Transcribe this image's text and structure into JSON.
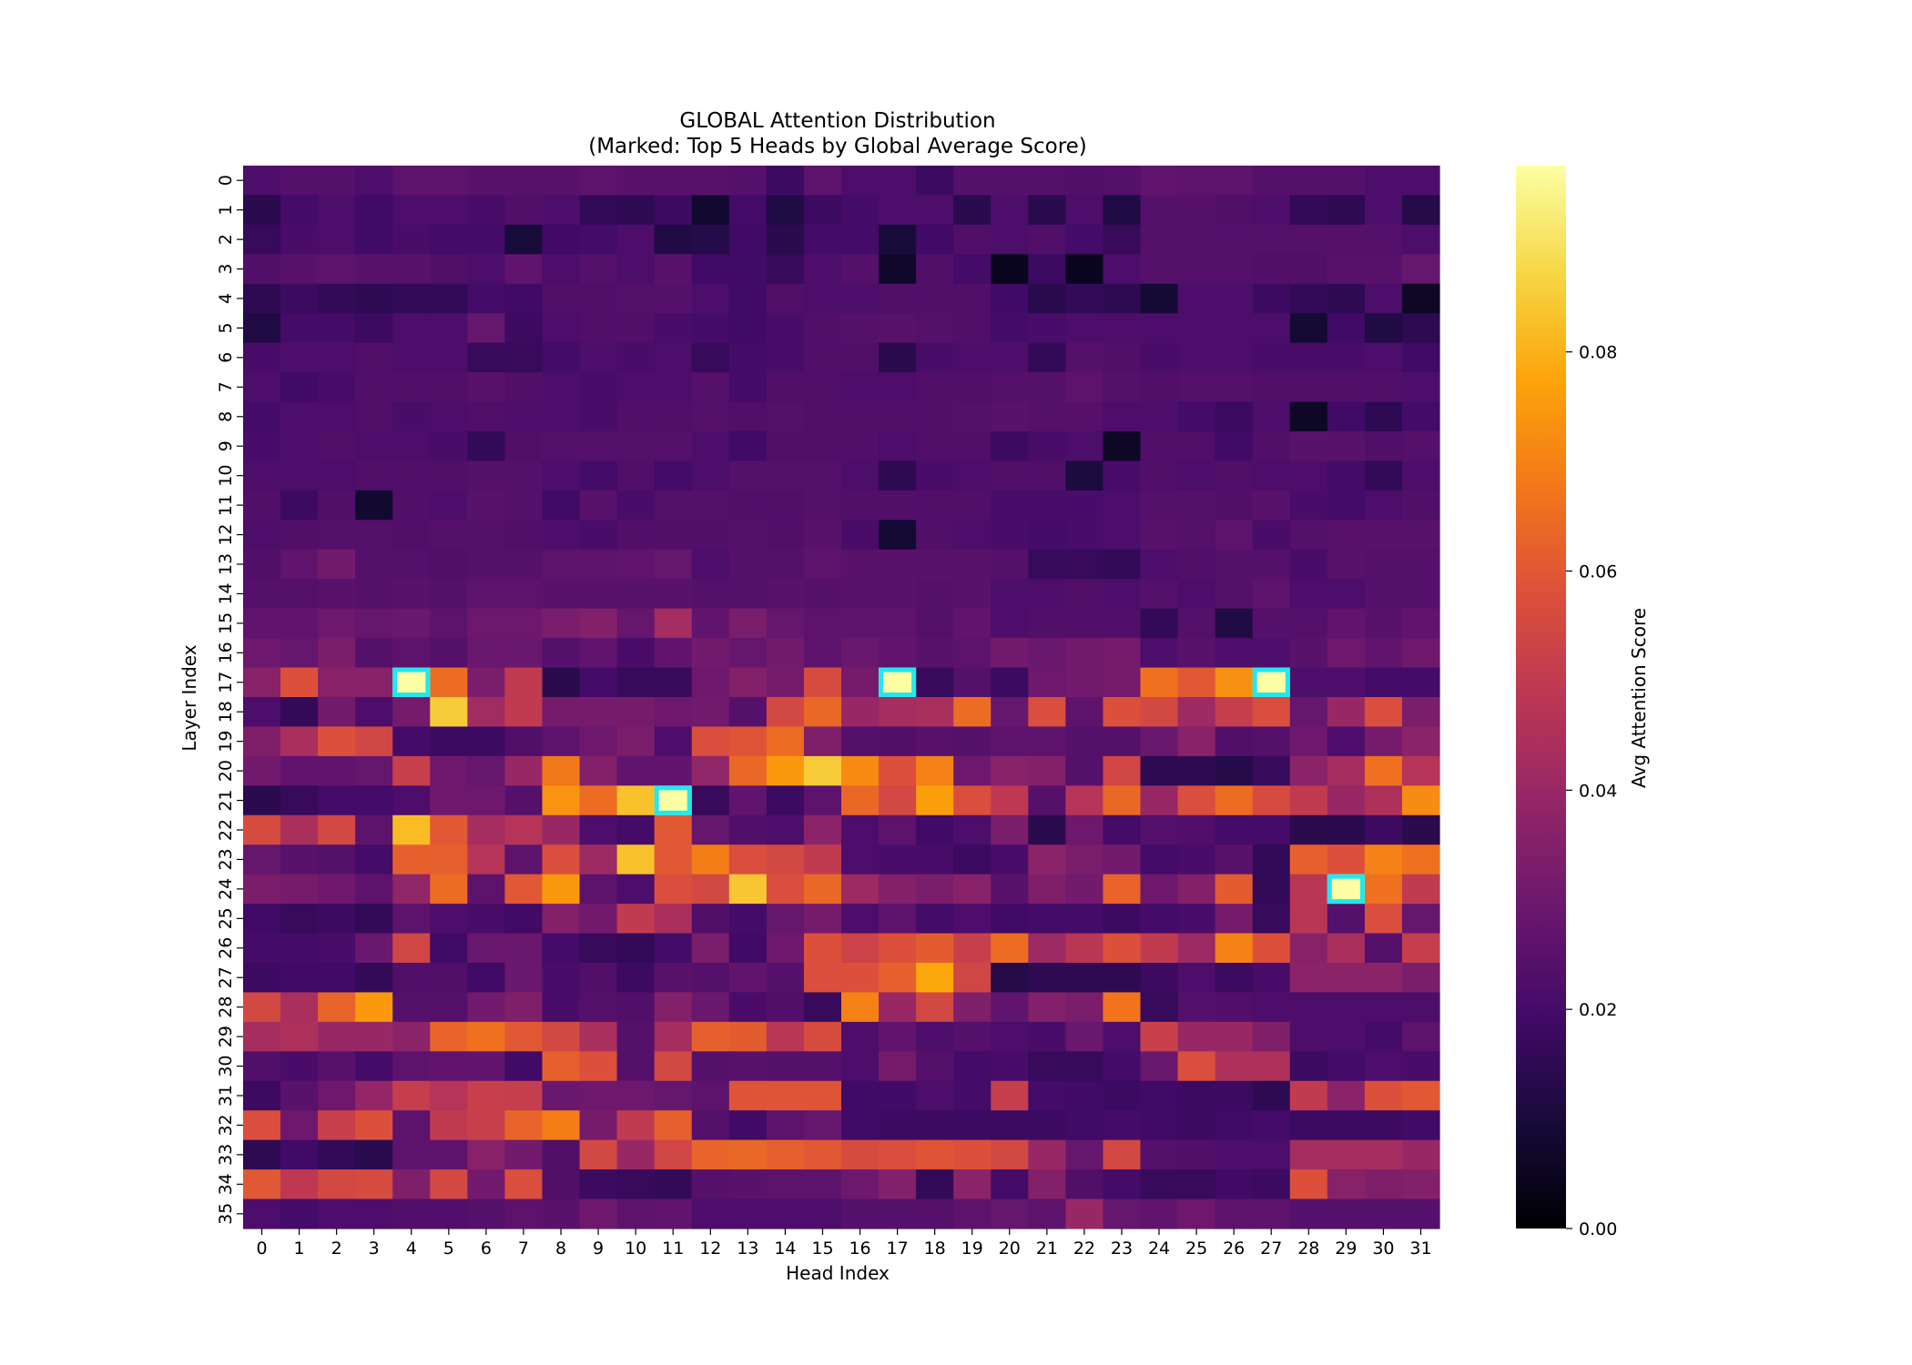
{
  "chart_data": {
    "type": "heatmap",
    "title": "GLOBAL Attention Distribution\n(Marked: Top 5 Heads by Global Average Score)",
    "title_lines": [
      "GLOBAL Attention Distribution",
      "(Marked: Top 5 Heads by Global Average Score)"
    ],
    "xlabel": "Head Index",
    "ylabel": "Layer Index",
    "colorbar_label": "Avg Attention Score",
    "colormap": "inferno",
    "vmin": 0.0,
    "vmax": 0.097,
    "colorbar_ticks": [
      "0.00",
      "0.02",
      "0.04",
      "0.06",
      "0.08"
    ],
    "x_ticks": [
      0,
      1,
      2,
      3,
      4,
      5,
      6,
      7,
      8,
      9,
      10,
      11,
      12,
      13,
      14,
      15,
      16,
      17,
      18,
      19,
      20,
      21,
      22,
      23,
      24,
      25,
      26,
      27,
      28,
      29,
      30,
      31
    ],
    "y_ticks": [
      0,
      1,
      2,
      3,
      4,
      5,
      6,
      7,
      8,
      9,
      10,
      11,
      12,
      13,
      14,
      15,
      16,
      17,
      18,
      19,
      20,
      21,
      22,
      23,
      24,
      25,
      26,
      27,
      28,
      29,
      30,
      31,
      32,
      33,
      34,
      35
    ],
    "marker_color": "#22e8ee",
    "marked_heads": [
      {
        "layer": 17,
        "head": 4
      },
      {
        "layer": 17,
        "head": 17
      },
      {
        "layer": 17,
        "head": 27
      },
      {
        "layer": 21,
        "head": 11
      },
      {
        "layer": 24,
        "head": 29
      }
    ],
    "values": [
      [
        0.022,
        0.024,
        0.024,
        0.022,
        0.026,
        0.026,
        0.025,
        0.025,
        0.025,
        0.026,
        0.025,
        0.025,
        0.025,
        0.024,
        0.018,
        0.026,
        0.022,
        0.022,
        0.018,
        0.024,
        0.024,
        0.024,
        0.023,
        0.024,
        0.027,
        0.026,
        0.026,
        0.024,
        0.024,
        0.024,
        0.022,
        0.022
      ],
      [
        0.014,
        0.02,
        0.022,
        0.019,
        0.022,
        0.022,
        0.021,
        0.023,
        0.022,
        0.016,
        0.015,
        0.018,
        0.008,
        0.02,
        0.012,
        0.018,
        0.02,
        0.022,
        0.022,
        0.014,
        0.022,
        0.014,
        0.022,
        0.012,
        0.024,
        0.024,
        0.023,
        0.022,
        0.016,
        0.015,
        0.022,
        0.013
      ],
      [
        0.017,
        0.021,
        0.022,
        0.019,
        0.021,
        0.02,
        0.02,
        0.01,
        0.019,
        0.02,
        0.022,
        0.012,
        0.013,
        0.019,
        0.014,
        0.02,
        0.02,
        0.01,
        0.019,
        0.023,
        0.022,
        0.023,
        0.02,
        0.017,
        0.024,
        0.024,
        0.024,
        0.024,
        0.024,
        0.024,
        0.024,
        0.022
      ],
      [
        0.023,
        0.025,
        0.026,
        0.025,
        0.025,
        0.023,
        0.022,
        0.027,
        0.022,
        0.024,
        0.022,
        0.025,
        0.019,
        0.019,
        0.017,
        0.022,
        0.024,
        0.007,
        0.023,
        0.02,
        0.005,
        0.018,
        0.005,
        0.022,
        0.024,
        0.024,
        0.024,
        0.023,
        0.023,
        0.025,
        0.025,
        0.028
      ],
      [
        0.015,
        0.018,
        0.016,
        0.015,
        0.016,
        0.016,
        0.02,
        0.019,
        0.023,
        0.023,
        0.024,
        0.024,
        0.022,
        0.019,
        0.023,
        0.022,
        0.022,
        0.023,
        0.023,
        0.023,
        0.019,
        0.014,
        0.016,
        0.015,
        0.009,
        0.022,
        0.022,
        0.018,
        0.016,
        0.015,
        0.022,
        0.006
      ],
      [
        0.012,
        0.02,
        0.02,
        0.018,
        0.022,
        0.022,
        0.028,
        0.018,
        0.022,
        0.023,
        0.023,
        0.021,
        0.02,
        0.019,
        0.021,
        0.023,
        0.024,
        0.025,
        0.024,
        0.023,
        0.02,
        0.021,
        0.022,
        0.022,
        0.022,
        0.022,
        0.022,
        0.022,
        0.009,
        0.019,
        0.012,
        0.015
      ],
      [
        0.021,
        0.022,
        0.022,
        0.023,
        0.022,
        0.022,
        0.017,
        0.017,
        0.02,
        0.022,
        0.021,
        0.022,
        0.017,
        0.02,
        0.021,
        0.023,
        0.023,
        0.014,
        0.021,
        0.022,
        0.022,
        0.016,
        0.024,
        0.023,
        0.021,
        0.022,
        0.022,
        0.021,
        0.021,
        0.021,
        0.022,
        0.019
      ],
      [
        0.022,
        0.019,
        0.021,
        0.023,
        0.023,
        0.023,
        0.025,
        0.023,
        0.022,
        0.021,
        0.022,
        0.022,
        0.024,
        0.02,
        0.023,
        0.023,
        0.022,
        0.022,
        0.023,
        0.023,
        0.024,
        0.024,
        0.026,
        0.024,
        0.023,
        0.024,
        0.024,
        0.023,
        0.023,
        0.023,
        0.023,
        0.022
      ],
      [
        0.02,
        0.022,
        0.022,
        0.023,
        0.021,
        0.022,
        0.023,
        0.022,
        0.022,
        0.021,
        0.023,
        0.023,
        0.024,
        0.023,
        0.024,
        0.023,
        0.023,
        0.023,
        0.023,
        0.024,
        0.025,
        0.024,
        0.024,
        0.022,
        0.022,
        0.02,
        0.018,
        0.022,
        0.006,
        0.019,
        0.015,
        0.02
      ],
      [
        0.021,
        0.022,
        0.023,
        0.022,
        0.022,
        0.021,
        0.016,
        0.023,
        0.024,
        0.024,
        0.024,
        0.024,
        0.022,
        0.019,
        0.023,
        0.023,
        0.023,
        0.022,
        0.023,
        0.023,
        0.018,
        0.021,
        0.022,
        0.006,
        0.023,
        0.023,
        0.019,
        0.023,
        0.025,
        0.025,
        0.023,
        0.024
      ],
      [
        0.022,
        0.022,
        0.022,
        0.023,
        0.023,
        0.023,
        0.024,
        0.024,
        0.022,
        0.02,
        0.023,
        0.02,
        0.022,
        0.024,
        0.024,
        0.024,
        0.022,
        0.015,
        0.021,
        0.022,
        0.023,
        0.023,
        0.011,
        0.021,
        0.023,
        0.022,
        0.023,
        0.022,
        0.022,
        0.02,
        0.016,
        0.022
      ],
      [
        0.023,
        0.018,
        0.023,
        0.008,
        0.023,
        0.022,
        0.025,
        0.024,
        0.019,
        0.025,
        0.021,
        0.024,
        0.024,
        0.023,
        0.023,
        0.024,
        0.023,
        0.023,
        0.023,
        0.023,
        0.021,
        0.021,
        0.021,
        0.022,
        0.024,
        0.024,
        0.023,
        0.025,
        0.021,
        0.02,
        0.022,
        0.023
      ],
      [
        0.022,
        0.023,
        0.024,
        0.024,
        0.023,
        0.024,
        0.024,
        0.023,
        0.022,
        0.021,
        0.023,
        0.023,
        0.023,
        0.024,
        0.023,
        0.025,
        0.021,
        0.009,
        0.023,
        0.022,
        0.021,
        0.02,
        0.021,
        0.022,
        0.025,
        0.024,
        0.026,
        0.021,
        0.024,
        0.025,
        0.025,
        0.025
      ],
      [
        0.023,
        0.027,
        0.031,
        0.024,
        0.024,
        0.023,
        0.024,
        0.024,
        0.026,
        0.026,
        0.027,
        0.028,
        0.022,
        0.024,
        0.024,
        0.026,
        0.025,
        0.025,
        0.025,
        0.025,
        0.024,
        0.017,
        0.017,
        0.016,
        0.022,
        0.023,
        0.024,
        0.024,
        0.021,
        0.025,
        0.024,
        0.024
      ],
      [
        0.024,
        0.024,
        0.025,
        0.024,
        0.025,
        0.024,
        0.026,
        0.026,
        0.025,
        0.025,
        0.025,
        0.025,
        0.024,
        0.024,
        0.025,
        0.024,
        0.025,
        0.025,
        0.024,
        0.025,
        0.022,
        0.022,
        0.023,
        0.022,
        0.024,
        0.022,
        0.024,
        0.026,
        0.022,
        0.022,
        0.024,
        0.024
      ],
      [
        0.027,
        0.027,
        0.03,
        0.028,
        0.029,
        0.026,
        0.03,
        0.03,
        0.033,
        0.035,
        0.028,
        0.043,
        0.027,
        0.033,
        0.028,
        0.026,
        0.026,
        0.026,
        0.024,
        0.027,
        0.022,
        0.023,
        0.023,
        0.023,
        0.016,
        0.024,
        0.012,
        0.024,
        0.024,
        0.027,
        0.025,
        0.027
      ],
      [
        0.03,
        0.028,
        0.033,
        0.024,
        0.026,
        0.024,
        0.029,
        0.029,
        0.024,
        0.027,
        0.021,
        0.027,
        0.031,
        0.028,
        0.031,
        0.026,
        0.029,
        0.027,
        0.025,
        0.026,
        0.031,
        0.029,
        0.031,
        0.032,
        0.022,
        0.025,
        0.022,
        0.022,
        0.025,
        0.03,
        0.027,
        0.03
      ],
      [
        0.036,
        0.058,
        0.036,
        0.036,
        0.097,
        0.065,
        0.033,
        0.05,
        0.014,
        0.02,
        0.017,
        0.017,
        0.03,
        0.035,
        0.032,
        0.056,
        0.032,
        0.097,
        0.017,
        0.024,
        0.018,
        0.03,
        0.031,
        0.032,
        0.066,
        0.06,
        0.073,
        0.097,
        0.022,
        0.022,
        0.02,
        0.02
      ],
      [
        0.022,
        0.016,
        0.031,
        0.022,
        0.032,
        0.085,
        0.042,
        0.05,
        0.032,
        0.032,
        0.032,
        0.03,
        0.031,
        0.024,
        0.055,
        0.064,
        0.04,
        0.043,
        0.044,
        0.065,
        0.028,
        0.057,
        0.026,
        0.058,
        0.055,
        0.041,
        0.051,
        0.057,
        0.028,
        0.04,
        0.057,
        0.033
      ],
      [
        0.034,
        0.044,
        0.058,
        0.054,
        0.02,
        0.018,
        0.018,
        0.023,
        0.026,
        0.03,
        0.033,
        0.022,
        0.057,
        0.059,
        0.065,
        0.034,
        0.024,
        0.023,
        0.025,
        0.024,
        0.026,
        0.026,
        0.024,
        0.024,
        0.029,
        0.036,
        0.023,
        0.024,
        0.03,
        0.022,
        0.032,
        0.037
      ],
      [
        0.031,
        0.027,
        0.027,
        0.028,
        0.052,
        0.03,
        0.028,
        0.04,
        0.068,
        0.035,
        0.027,
        0.027,
        0.038,
        0.064,
        0.075,
        0.085,
        0.072,
        0.058,
        0.07,
        0.03,
        0.036,
        0.035,
        0.024,
        0.054,
        0.015,
        0.015,
        0.013,
        0.017,
        0.037,
        0.043,
        0.066,
        0.047
      ],
      [
        0.014,
        0.017,
        0.02,
        0.02,
        0.022,
        0.03,
        0.03,
        0.024,
        0.074,
        0.065,
        0.083,
        0.097,
        0.017,
        0.027,
        0.018,
        0.026,
        0.064,
        0.055,
        0.076,
        0.057,
        0.049,
        0.024,
        0.047,
        0.064,
        0.04,
        0.057,
        0.065,
        0.056,
        0.05,
        0.04,
        0.045,
        0.072
      ],
      [
        0.056,
        0.044,
        0.055,
        0.026,
        0.082,
        0.06,
        0.043,
        0.047,
        0.04,
        0.022,
        0.02,
        0.06,
        0.028,
        0.023,
        0.022,
        0.037,
        0.022,
        0.026,
        0.019,
        0.022,
        0.033,
        0.014,
        0.03,
        0.02,
        0.024,
        0.023,
        0.02,
        0.02,
        0.014,
        0.014,
        0.018,
        0.014
      ],
      [
        0.028,
        0.025,
        0.024,
        0.02,
        0.062,
        0.062,
        0.047,
        0.026,
        0.057,
        0.041,
        0.083,
        0.06,
        0.069,
        0.057,
        0.055,
        0.05,
        0.022,
        0.021,
        0.021,
        0.018,
        0.021,
        0.037,
        0.033,
        0.031,
        0.02,
        0.021,
        0.025,
        0.016,
        0.062,
        0.058,
        0.07,
        0.066
      ],
      [
        0.033,
        0.032,
        0.03,
        0.026,
        0.038,
        0.065,
        0.026,
        0.06,
        0.075,
        0.026,
        0.022,
        0.057,
        0.055,
        0.084,
        0.057,
        0.064,
        0.041,
        0.035,
        0.033,
        0.036,
        0.025,
        0.034,
        0.031,
        0.063,
        0.03,
        0.035,
        0.061,
        0.016,
        0.048,
        0.097,
        0.066,
        0.05
      ],
      [
        0.019,
        0.017,
        0.018,
        0.016,
        0.026,
        0.022,
        0.021,
        0.019,
        0.035,
        0.031,
        0.05,
        0.044,
        0.023,
        0.02,
        0.028,
        0.032,
        0.022,
        0.026,
        0.02,
        0.022,
        0.019,
        0.02,
        0.02,
        0.018,
        0.02,
        0.021,
        0.032,
        0.017,
        0.048,
        0.024,
        0.057,
        0.028
      ],
      [
        0.02,
        0.02,
        0.021,
        0.029,
        0.054,
        0.019,
        0.029,
        0.029,
        0.02,
        0.017,
        0.016,
        0.02,
        0.033,
        0.019,
        0.03,
        0.058,
        0.053,
        0.058,
        0.061,
        0.052,
        0.065,
        0.041,
        0.048,
        0.058,
        0.05,
        0.041,
        0.07,
        0.058,
        0.036,
        0.044,
        0.024,
        0.051
      ],
      [
        0.018,
        0.019,
        0.019,
        0.016,
        0.023,
        0.023,
        0.019,
        0.029,
        0.021,
        0.023,
        0.018,
        0.025,
        0.024,
        0.027,
        0.024,
        0.057,
        0.058,
        0.062,
        0.078,
        0.054,
        0.013,
        0.015,
        0.015,
        0.015,
        0.018,
        0.022,
        0.018,
        0.021,
        0.037,
        0.037,
        0.037,
        0.033
      ],
      [
        0.055,
        0.044,
        0.063,
        0.075,
        0.024,
        0.024,
        0.031,
        0.034,
        0.021,
        0.024,
        0.023,
        0.035,
        0.029,
        0.021,
        0.023,
        0.017,
        0.07,
        0.04,
        0.055,
        0.034,
        0.027,
        0.035,
        0.033,
        0.067,
        0.017,
        0.024,
        0.023,
        0.022,
        0.022,
        0.022,
        0.022,
        0.022
      ],
      [
        0.043,
        0.045,
        0.04,
        0.04,
        0.037,
        0.063,
        0.066,
        0.06,
        0.055,
        0.044,
        0.024,
        0.043,
        0.062,
        0.061,
        0.048,
        0.056,
        0.022,
        0.027,
        0.022,
        0.024,
        0.022,
        0.021,
        0.029,
        0.022,
        0.052,
        0.04,
        0.04,
        0.034,
        0.022,
        0.022,
        0.02,
        0.026
      ],
      [
        0.023,
        0.021,
        0.025,
        0.02,
        0.026,
        0.027,
        0.027,
        0.019,
        0.062,
        0.058,
        0.024,
        0.055,
        0.024,
        0.025,
        0.024,
        0.024,
        0.022,
        0.032,
        0.024,
        0.02,
        0.021,
        0.017,
        0.017,
        0.02,
        0.029,
        0.057,
        0.045,
        0.045,
        0.018,
        0.02,
        0.022,
        0.021
      ],
      [
        0.018,
        0.025,
        0.03,
        0.039,
        0.051,
        0.047,
        0.052,
        0.051,
        0.029,
        0.03,
        0.03,
        0.028,
        0.026,
        0.059,
        0.059,
        0.059,
        0.019,
        0.019,
        0.022,
        0.02,
        0.051,
        0.02,
        0.019,
        0.018,
        0.019,
        0.018,
        0.018,
        0.015,
        0.05,
        0.037,
        0.058,
        0.06
      ],
      [
        0.057,
        0.03,
        0.052,
        0.058,
        0.026,
        0.05,
        0.052,
        0.063,
        0.069,
        0.032,
        0.05,
        0.062,
        0.024,
        0.019,
        0.026,
        0.028,
        0.019,
        0.018,
        0.018,
        0.018,
        0.018,
        0.018,
        0.019,
        0.02,
        0.019,
        0.018,
        0.019,
        0.02,
        0.018,
        0.018,
        0.018,
        0.019
      ],
      [
        0.015,
        0.019,
        0.016,
        0.014,
        0.026,
        0.026,
        0.036,
        0.031,
        0.023,
        0.055,
        0.04,
        0.054,
        0.063,
        0.064,
        0.062,
        0.06,
        0.056,
        0.057,
        0.059,
        0.058,
        0.055,
        0.04,
        0.028,
        0.055,
        0.024,
        0.023,
        0.022,
        0.022,
        0.043,
        0.043,
        0.043,
        0.04
      ],
      [
        0.06,
        0.049,
        0.055,
        0.056,
        0.034,
        0.055,
        0.031,
        0.057,
        0.023,
        0.018,
        0.017,
        0.016,
        0.024,
        0.025,
        0.026,
        0.026,
        0.03,
        0.035,
        0.016,
        0.037,
        0.02,
        0.035,
        0.023,
        0.02,
        0.017,
        0.017,
        0.019,
        0.018,
        0.058,
        0.036,
        0.034,
        0.035
      ],
      [
        0.022,
        0.02,
        0.022,
        0.022,
        0.023,
        0.023,
        0.024,
        0.026,
        0.025,
        0.03,
        0.026,
        0.027,
        0.022,
        0.022,
        0.022,
        0.022,
        0.024,
        0.024,
        0.024,
        0.026,
        0.028,
        0.026,
        0.04,
        0.028,
        0.027,
        0.03,
        0.026,
        0.026,
        0.024,
        0.024,
        0.024,
        0.024
      ]
    ]
  }
}
